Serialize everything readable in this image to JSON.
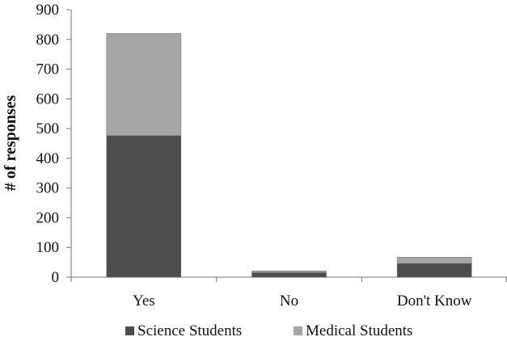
{
  "chart_data": {
    "type": "bar",
    "stacked": true,
    "title": "",
    "xlabel": "",
    "ylabel": "# of responses",
    "ylim": [
      0,
      900
    ],
    "yticks": [
      0,
      100,
      200,
      300,
      400,
      500,
      600,
      700,
      800,
      900
    ],
    "categories": [
      "Yes",
      "No",
      "Don't Know"
    ],
    "series": [
      {
        "name": "Science Students",
        "values": [
          476,
          15,
          46
        ],
        "color": "#4d4d4d"
      },
      {
        "name": "Medical Students",
        "values": [
          344,
          6,
          21
        ],
        "color": "#a6a6a6"
      }
    ],
    "grid": false,
    "legend_position": "bottom"
  }
}
